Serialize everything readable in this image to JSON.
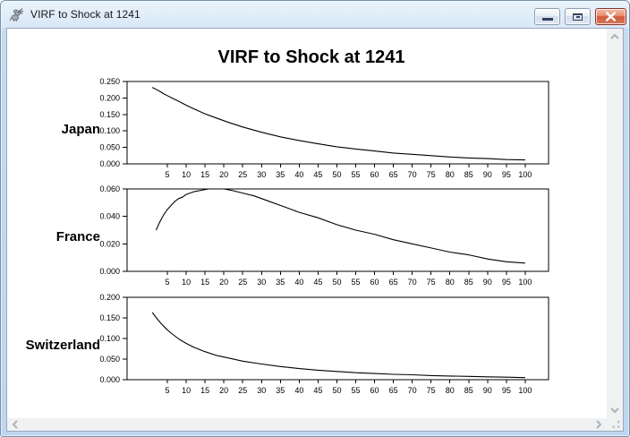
{
  "window": {
    "title": "VIRF to Shock at 1241",
    "controls": [
      {
        "name": "minimize",
        "icon": "minimize-icon"
      },
      {
        "name": "maximize",
        "icon": "maximize-icon"
      },
      {
        "name": "close",
        "icon": "close-x-icon"
      }
    ],
    "app_icon": "rat-icon"
  },
  "chart": {
    "title": "VIRF to Shock at 1241"
  },
  "chart_data": [
    {
      "type": "line",
      "title": "Japan",
      "line_color": "#000000",
      "grid": false,
      "xlim": [
        -5.7,
        106.2
      ],
      "ylim": [
        0,
        0.25
      ],
      "yticks": [
        "0.000",
        "0.050",
        "0.100",
        "0.150",
        "0.200",
        "0.250"
      ],
      "xticks": [
        5,
        10,
        15,
        20,
        25,
        30,
        35,
        40,
        45,
        50,
        55,
        60,
        65,
        70,
        75,
        80,
        85,
        90,
        95,
        100
      ],
      "x": [
        1,
        2,
        3,
        4,
        5,
        6,
        8,
        10,
        12,
        15,
        18,
        21,
        25,
        30,
        35,
        40,
        45,
        50,
        55,
        60,
        65,
        70,
        75,
        80,
        85,
        90,
        95,
        100
      ],
      "y": [
        0.232,
        0.226,
        0.22,
        0.213,
        0.207,
        0.201,
        0.19,
        0.178,
        0.167,
        0.152,
        0.139,
        0.127,
        0.112,
        0.096,
        0.082,
        0.071,
        0.061,
        0.052,
        0.045,
        0.039,
        0.033,
        0.029,
        0.025,
        0.021,
        0.018,
        0.016,
        0.013,
        0.012
      ]
    },
    {
      "type": "line",
      "title": "France",
      "line_color": "#000000",
      "grid": false,
      "xlim": [
        -5.7,
        106.2
      ],
      "ylim": [
        0,
        0.06
      ],
      "yticks": [
        "0.000",
        "0.020",
        "0.040",
        "0.060"
      ],
      "xticks": [
        5,
        10,
        15,
        20,
        25,
        30,
        35,
        40,
        45,
        50,
        55,
        60,
        65,
        70,
        75,
        80,
        85,
        90,
        95,
        100
      ],
      "x": [
        2,
        3,
        4,
        5,
        6,
        7,
        8,
        9,
        10,
        12,
        14,
        16,
        18,
        20,
        22,
        25,
        28,
        32,
        36,
        40,
        45,
        50,
        55,
        60,
        65,
        70,
        75,
        80,
        85,
        90,
        95,
        100
      ],
      "y": [
        0.03,
        0.036,
        0.041,
        0.045,
        0.048,
        0.051,
        0.053,
        0.054,
        0.056,
        0.058,
        0.059,
        0.06,
        0.06,
        0.06,
        0.059,
        0.057,
        0.055,
        0.051,
        0.047,
        0.043,
        0.039,
        0.034,
        0.03,
        0.027,
        0.023,
        0.02,
        0.017,
        0.014,
        0.012,
        0.009,
        0.007,
        0.006
      ]
    },
    {
      "type": "line",
      "title": "Switzerland",
      "line_color": "#000000",
      "grid": false,
      "xlim": [
        -5.7,
        106.2
      ],
      "ylim": [
        0,
        0.2
      ],
      "yticks": [
        "0.000",
        "0.050",
        "0.100",
        "0.150",
        "0.200"
      ],
      "xticks": [
        5,
        10,
        15,
        20,
        25,
        30,
        35,
        40,
        45,
        50,
        55,
        60,
        65,
        70,
        75,
        80,
        85,
        90,
        95,
        100
      ],
      "x": [
        1,
        2,
        3,
        4,
        5,
        6,
        8,
        10,
        12,
        15,
        18,
        21,
        25,
        30,
        35,
        40,
        45,
        50,
        55,
        60,
        65,
        70,
        75,
        80,
        85,
        90,
        95,
        100
      ],
      "y": [
        0.163,
        0.151,
        0.14,
        0.13,
        0.121,
        0.113,
        0.099,
        0.088,
        0.079,
        0.068,
        0.059,
        0.053,
        0.045,
        0.038,
        0.032,
        0.027,
        0.023,
        0.02,
        0.017,
        0.015,
        0.013,
        0.012,
        0.01,
        0.009,
        0.008,
        0.007,
        0.006,
        0.005
      ]
    }
  ],
  "icons": {
    "scroll_up": "chevron-up-icon",
    "scroll_down": "chevron-down-icon",
    "scroll_left": "chevron-left-icon",
    "scroll_right": "chevron-right-icon",
    "size_grip": "resize-grip-icon"
  },
  "colors": {
    "titlebar": "#d9e8f7",
    "close_button": "#d05b3c",
    "canvas": "#ffffff",
    "scroll_track": "#f0f1f3",
    "line": "#000000"
  }
}
